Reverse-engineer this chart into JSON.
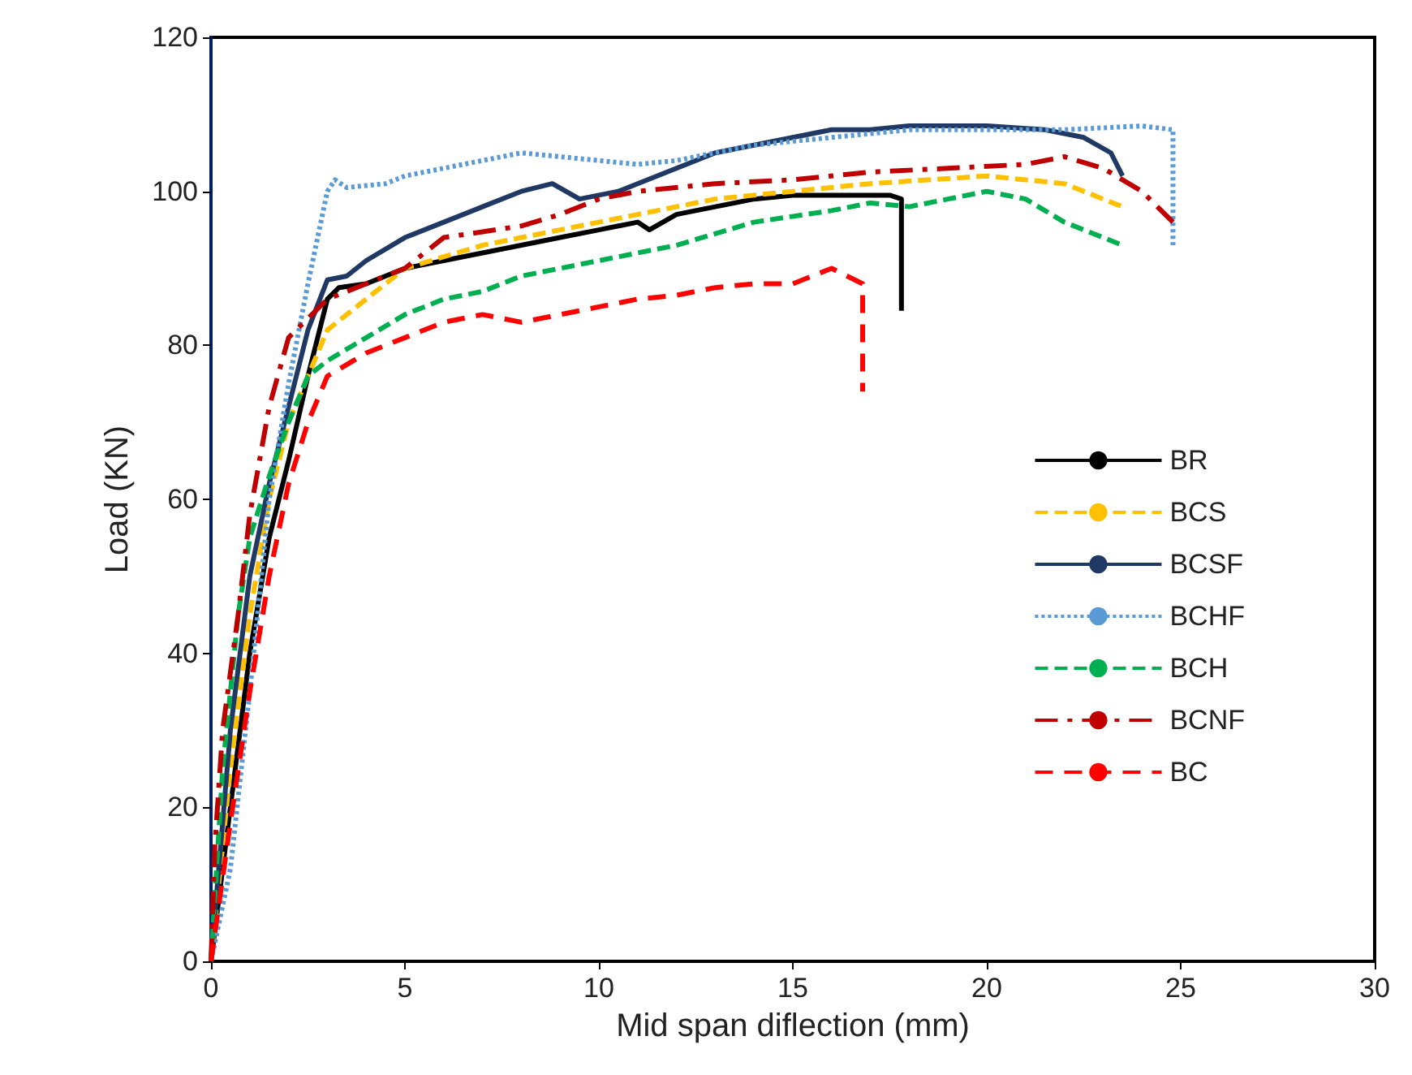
{
  "chart_data": {
    "type": "line",
    "xlabel": "Mid span diflection (mm)",
    "ylabel": "Load (KN)",
    "xlim": [
      0,
      30
    ],
    "xticks": [
      0,
      5,
      10,
      15,
      20,
      25,
      30
    ],
    "ylim": [
      0,
      120
    ],
    "yticks": [
      0,
      20,
      40,
      60,
      80,
      100,
      120
    ],
    "grid": false,
    "legend": "right",
    "marker": "none",
    "series": [
      {
        "name": "BR",
        "color": "#000000",
        "line_style": "solid",
        "x": [
          0,
          0.5,
          1,
          1.5,
          2,
          2.5,
          3,
          3.3,
          4,
          5,
          6,
          7,
          8,
          9,
          10,
          11,
          11.3,
          12,
          13,
          14,
          15,
          17.5,
          17.8,
          17.8
        ],
        "values": [
          0,
          20,
          40,
          55,
          65,
          76,
          86,
          87.5,
          88,
          90,
          91,
          92,
          93,
          94,
          95,
          96,
          95,
          97,
          98,
          99,
          99.5,
          99.5,
          99,
          84.5
        ]
      },
      {
        "name": "BCS",
        "color": "#ffc000",
        "line_style": "dashed",
        "x": [
          0,
          0.5,
          1,
          1.5,
          2,
          2.5,
          3,
          4,
          5,
          7,
          9,
          11,
          13,
          15,
          17,
          20,
          22,
          23.5
        ],
        "values": [
          0,
          25,
          45,
          60,
          70,
          76,
          82,
          86,
          90,
          93,
          95,
          97,
          99,
          100,
          101,
          102,
          101,
          98
        ]
      },
      {
        "name": "BCSF",
        "color": "#203864",
        "line_style": "solid",
        "x": [
          0,
          0.5,
          1,
          1.5,
          2,
          2.5,
          3,
          3.5,
          4,
          5,
          6,
          7,
          8,
          8.8,
          9.5,
          10.5,
          12,
          13,
          14,
          15,
          16,
          17,
          18,
          20,
          21.5,
          22.5,
          23.2,
          23.5
        ],
        "values": [
          0,
          30,
          50,
          62,
          72,
          82,
          88.5,
          89,
          91,
          94,
          96,
          98,
          100,
          101,
          99,
          100,
          103,
          105,
          106,
          107,
          108,
          108,
          108.5,
          108.5,
          108,
          107,
          105,
          102
        ]
      },
      {
        "name": "BCHF",
        "color": "#5b9bd5",
        "line_style": "dotted",
        "x": [
          0,
          0.5,
          1,
          1.5,
          2,
          2.5,
          3,
          3.2,
          3.5,
          4.5,
          5,
          6,
          7,
          8,
          9,
          10,
          11,
          12,
          13,
          14,
          15,
          16,
          17,
          18,
          20,
          22,
          24,
          24.8,
          24.8
        ],
        "values": [
          0,
          12,
          35,
          60,
          75,
          88,
          100,
          101.5,
          100.5,
          101,
          102,
          103,
          104,
          105,
          104.5,
          104,
          103.5,
          104,
          105,
          106,
          106.5,
          107,
          107.5,
          108,
          108,
          108,
          108.5,
          108,
          93
        ]
      },
      {
        "name": "BCH",
        "color": "#00b050",
        "line_style": "dashed",
        "x": [
          0,
          0.3,
          0.7,
          1,
          1.5,
          2,
          2.5,
          3,
          4,
          5,
          6,
          7,
          8,
          10,
          12,
          14,
          16,
          17,
          18,
          19,
          20,
          21,
          22,
          23.5
        ],
        "values": [
          0,
          25,
          45,
          55,
          63,
          70,
          76,
          78,
          81,
          84,
          86,
          87,
          89,
          91,
          93,
          96,
          97.5,
          98.5,
          98,
          99,
          100,
          99,
          96,
          93
        ]
      },
      {
        "name": "BCNF",
        "color": "#c00000",
        "line_style": "dashdot",
        "x": [
          0,
          0.1,
          0.3,
          0.7,
          1,
          1.5,
          2,
          3,
          4,
          5,
          6,
          8,
          9,
          10,
          11,
          13,
          15,
          17,
          19,
          21,
          22,
          23,
          24,
          24.8
        ],
        "values": [
          0,
          15,
          30,
          45,
          58,
          72,
          81,
          86,
          88,
          90,
          94,
          95.5,
          97,
          99,
          100,
          101,
          101.5,
          102.5,
          103,
          103.5,
          104.5,
          103,
          100,
          96
        ]
      },
      {
        "name": "BC",
        "color": "#ff0000",
        "line_style": "longdash",
        "x": [
          0,
          0.5,
          1,
          1.5,
          2,
          2.5,
          3,
          4,
          5,
          6,
          7,
          8,
          9,
          10,
          11,
          12,
          13,
          14,
          15,
          16,
          16.8,
          16.8
        ],
        "values": [
          0,
          18,
          35,
          50,
          62,
          70,
          76,
          79,
          81,
          83,
          84,
          83,
          84,
          85,
          86,
          86.5,
          87.5,
          88,
          88,
          90,
          88,
          74
        ]
      }
    ]
  }
}
